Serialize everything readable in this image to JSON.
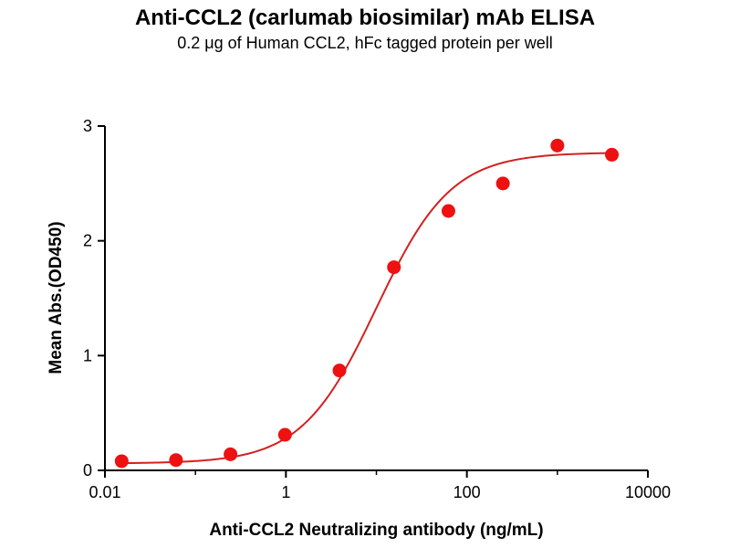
{
  "chart_data": {
    "type": "scatter",
    "title": "Anti-CCL2 (carlumab biosimilar) mAb ELISA",
    "subtitle": "0.2 μg of Human CCL2, hFc tagged protein per well",
    "xlabel": "Anti-CCL2 Neutralizing antibody (ng/mL)",
    "ylabel": "Mean Abs.(OD450)",
    "x_scale": "log",
    "xlim": [
      0.01,
      10000
    ],
    "ylim": [
      0,
      3
    ],
    "xticks": [
      {
        "value": 0.01,
        "label": "0.01"
      },
      {
        "value": 1,
        "label": "1"
      },
      {
        "value": 100,
        "label": "100"
      },
      {
        "value": 10000,
        "label": "10000"
      }
    ],
    "minor_xticks": [
      0.1,
      10,
      1000
    ],
    "yticks": [
      {
        "value": 0,
        "label": "0"
      },
      {
        "value": 1,
        "label": "1"
      },
      {
        "value": 2,
        "label": "2"
      },
      {
        "value": 3,
        "label": "3"
      }
    ],
    "points": {
      "x": [
        0.0153,
        0.061,
        0.2441,
        0.9766,
        3.906,
        15.63,
        62.5,
        250,
        1000,
        4000
      ],
      "y": [
        0.08,
        0.09,
        0.14,
        0.31,
        0.87,
        1.77,
        2.26,
        2.5,
        2.83,
        2.75
      ]
    },
    "fit": {
      "model": "4PL",
      "bottom": 0.06,
      "top": 2.77,
      "ec50": 10,
      "hillslope": 1.05
    },
    "point_color": "#ee1111",
    "line_color": "#d42020",
    "axis_color": "#000000",
    "grid": false,
    "legend": "none"
  }
}
